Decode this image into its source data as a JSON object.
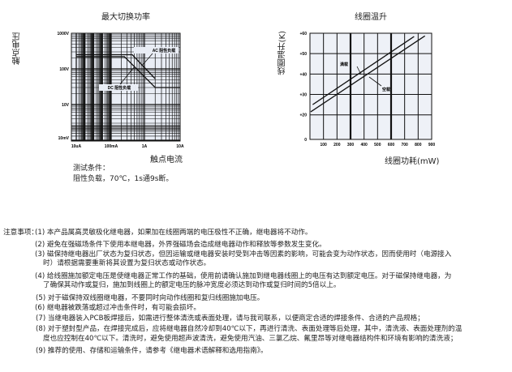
{
  "chart_data": [
    {
      "type": "line",
      "title": "最大切换功率",
      "xlabel": "触点电流",
      "ylabel": "触点电压",
      "x_scale": "log",
      "y_scale": "log",
      "x_ticks": [
        "10uA",
        "100mA",
        "1A",
        "10A"
      ],
      "y_ticks": [
        "1000V",
        "100V",
        "10V",
        "10mV"
      ],
      "grid": true,
      "series": [
        {
          "name": "AC 阻性负载",
          "points": [
            [
              1e-05,
              250
            ],
            [
              0.43,
              250
            ],
            [
              2,
              53
            ]
          ]
        },
        {
          "name": "DC 阻性负载",
          "points": [
            [
              1e-05,
              220
            ],
            [
              0.25,
              220
            ],
            [
              2,
              30
            ],
            [
              10,
              30
            ]
          ]
        }
      ]
    },
    {
      "type": "line",
      "title": "线圈温升",
      "xlabel": "线圈功耗(mW)",
      "ylabel": "线圈温升(K)",
      "xlim": [
        0,
        900
      ],
      "ylim": [
        8,
        60
      ],
      "x_ticks": [
        "100",
        "200",
        "300",
        "400",
        "500",
        "600",
        "700",
        "800",
        "900"
      ],
      "y_ticks": [
        "+60",
        "+50",
        "+40",
        "+30",
        "+20",
        "0"
      ],
      "grid": true,
      "series": [
        {
          "name": "满载",
          "points": [
            [
              20,
              25
            ],
            [
              770,
              58.4
            ]
          ]
        },
        {
          "name": "空载",
          "points": [
            [
              6,
              21.5
            ],
            [
              850,
              58.7
            ]
          ]
        }
      ]
    }
  ],
  "test_conditions": {
    "label": "测试条件：",
    "value": "阻性负载，70℃，1s通9s断。"
  },
  "notes": {
    "label": "注意事项：",
    "items": [
      "(1) 本产品属高灵敏极化继电器，如果加在线圈两端的电压极性不正确，继电器将不动作。",
      "(2) 避免在强磁场条件下使用本继电器，外界强磁场会造成继电器动作和释放等参数发生变化。",
      "(3) 磁保持继电器出厂状态为复归状态，但因运输或继电器安装时受到冲击等因素的影响，可能会变为动作状态，因而使用时（电源接入",
      "时）请根据需要重新将其设置为复归状态或动作状态。",
      "(4) 给线圈施加额定电压是使继电器正常工作的基础，使用前请确认施加到继电器线圈上的电压有达到额定电压。对于磁保持继电器，为",
      "了确保其动作或复归，施加到线圈上的额定电压的脉冲宽度必须达到动作或复归时间的5倍以上。",
      "(5) 对于磁保持双线圈继电器，不要同时向动作线圈和复归线圈施加电压。",
      "(6) 继电器被跌落或超过冲击条件时，有可能会损坏。",
      "(7) 当继电器装入PCB板焊接后，如需进行整体清洗或表面处理，请与我司联系，以便商定合适的焊接条件、合适的产品规格；",
      "(8) 对于塑封型产品，在焊接完成后，应将继电器自然冷却到40℃以下，再进行清洗、表面处理等后处理，其中，清洗液、表面处理剂的温",
      "度也应控制在40℃以下。清洗时，避免使用超声波清洗，避免使用汽油、三氯乙烷、氟里昂等对继电器结构件和环境有影响的清洗液；",
      "(9) 推荐的使用、存储和运输条件，请参考《继电器术语解释和选用指南》。"
    ]
  }
}
